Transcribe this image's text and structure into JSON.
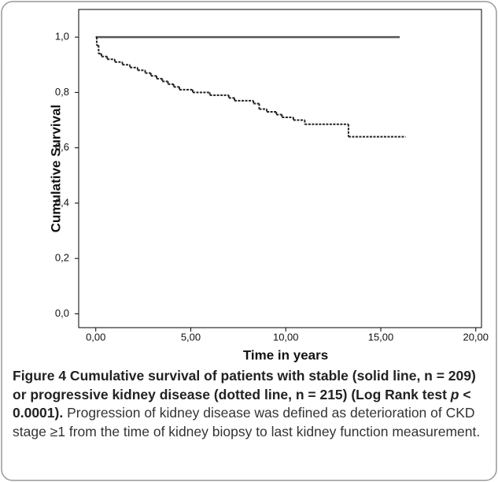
{
  "chart_data": {
    "type": "step",
    "ylabel": "Cumulative Survival",
    "xlabel": "Time in years",
    "xlim": [
      -0.9,
      20.3
    ],
    "ylim": [
      -0.05,
      1.1
    ],
    "xticks": [
      {
        "value": 0,
        "label": "0,00"
      },
      {
        "value": 5,
        "label": "5,00"
      },
      {
        "value": 10,
        "label": "10,00"
      },
      {
        "value": 15,
        "label": "15,00"
      },
      {
        "value": 20,
        "label": "20,00"
      }
    ],
    "yticks": [
      {
        "value": 0,
        "label": "0,0"
      },
      {
        "value": 0.2,
        "label": "0,2"
      },
      {
        "value": 0.4,
        "label": "0,4"
      },
      {
        "value": 0.6,
        "label": "0,6"
      },
      {
        "value": 0.8,
        "label": "0,8"
      },
      {
        "value": 1.0,
        "label": "1,0"
      }
    ],
    "series": [
      {
        "color": "#555555",
        "style": "solid",
        "x": [
          0,
          16
        ],
        "values": [
          1.0,
          1.0
        ]
      },
      {
        "color": "#222222",
        "style": "dotted",
        "x": [
          0,
          0.05,
          0.15,
          0.3,
          0.6,
          1.0,
          1.4,
          1.8,
          2.2,
          2.6,
          2.9,
          3.2,
          3.5,
          3.8,
          4.1,
          4.4,
          5.1,
          6.0,
          7.0,
          7.3,
          8.3,
          8.6,
          9.0,
          9.5,
          9.8,
          10.4,
          11.0,
          13.3,
          16.3
        ],
        "values": [
          1.0,
          0.97,
          0.94,
          0.93,
          0.92,
          0.91,
          0.9,
          0.89,
          0.88,
          0.87,
          0.86,
          0.85,
          0.84,
          0.83,
          0.82,
          0.81,
          0.8,
          0.79,
          0.78,
          0.77,
          0.76,
          0.74,
          0.73,
          0.72,
          0.71,
          0.7,
          0.685,
          0.64,
          0.64
        ]
      }
    ]
  },
  "caption": {
    "bold_1": "Figure 4 Cumulative survival of patients with stable (solid line, n = 209) or progressive kidney disease (dotted line, n = 215) (Log Rank test ",
    "bold_p": "p",
    "bold_2": " < 0.0001).",
    "body": " Progression of kidney disease was defined as deterioration of CKD stage ≥1 from the time of kidney biopsy to last kidney function measurement."
  }
}
